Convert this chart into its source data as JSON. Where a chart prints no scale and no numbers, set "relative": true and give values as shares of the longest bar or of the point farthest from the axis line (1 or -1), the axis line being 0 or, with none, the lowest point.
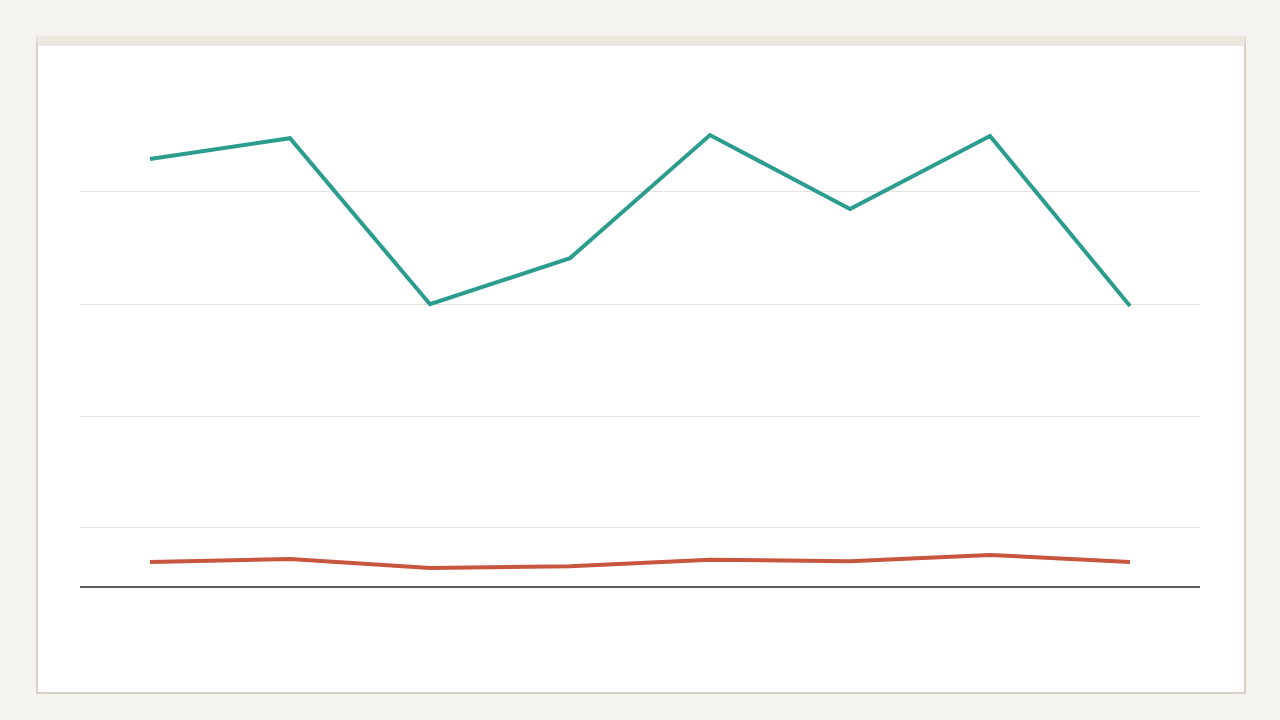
{
  "chart_data": {
    "type": "line",
    "relative": true,
    "categories": [
      null,
      null,
      null,
      null,
      null,
      null,
      null,
      null
    ],
    "series": [
      {
        "color": "#2a9d8f",
        "values": [
          0.947,
          0.993,
          0.625,
          0.727,
          1.0,
          0.836,
          0.998,
          0.621
        ]
      },
      {
        "color": "#c8553d",
        "values": [
          0.053,
          0.06,
          0.04,
          0.044,
          0.058,
          0.055,
          0.069,
          0.053
        ]
      }
    ],
    "grid": "y",
    "marker": "none",
    "line_style": "solid"
  }
}
